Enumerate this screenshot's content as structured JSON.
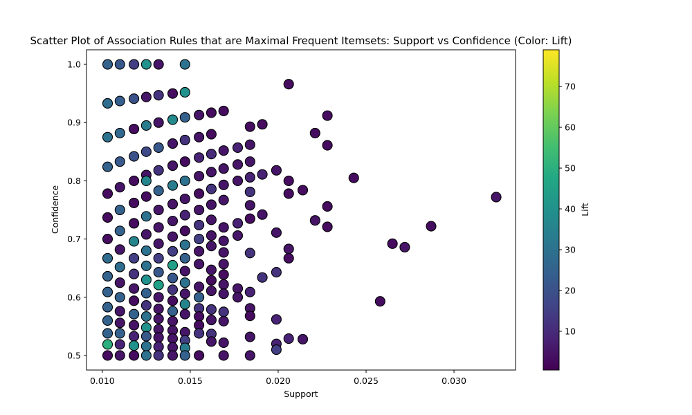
{
  "chart_data": {
    "type": "scatter",
    "title": "Scatter Plot of Association Rules that are Maximal Frequent Itemsets: Support vs Confidence (Color: Lift)",
    "xlabel": "Support",
    "ylabel": "Confidence",
    "xlim": [
      0.0091,
      0.0335
    ],
    "ylim": [
      0.475,
      1.025
    ],
    "x_ticks": [
      0.01,
      0.015,
      0.02,
      0.025,
      0.03
    ],
    "x_tick_labels": [
      "0.010",
      "0.015",
      "0.020",
      "0.025",
      "0.030"
    ],
    "y_ticks": [
      0.5,
      0.6,
      0.7,
      0.8,
      0.9,
      1.0
    ],
    "y_tick_labels": [
      "0.5",
      "0.6",
      "0.7",
      "0.8",
      "0.9",
      "1.0"
    ],
    "grid": false,
    "colorbar": {
      "label": "Lift",
      "colormap": "viridis",
      "range": [
        0.5,
        79
      ],
      "ticks": [
        10,
        20,
        30,
        40,
        50,
        60,
        70
      ],
      "tick_labels": [
        "10",
        "20",
        "30",
        "40",
        "50",
        "60",
        "70"
      ]
    },
    "marker": {
      "edge_color": "#000000",
      "shape": "circle"
    },
    "points": [
      {
        "x": 0.0103,
        "y": 1.0,
        "lift": 25
      },
      {
        "x": 0.011,
        "y": 1.0,
        "lift": 22
      },
      {
        "x": 0.0118,
        "y": 1.0,
        "lift": 15
      },
      {
        "x": 0.0125,
        "y": 1.0,
        "lift": 40
      },
      {
        "x": 0.0132,
        "y": 1.0,
        "lift": 5
      },
      {
        "x": 0.0147,
        "y": 1.0,
        "lift": 30
      },
      {
        "x": 0.0103,
        "y": 0.933,
        "lift": 28
      },
      {
        "x": 0.011,
        "y": 0.937,
        "lift": 24
      },
      {
        "x": 0.0118,
        "y": 0.941,
        "lift": 20
      },
      {
        "x": 0.0125,
        "y": 0.944,
        "lift": 5
      },
      {
        "x": 0.0132,
        "y": 0.947,
        "lift": 12
      },
      {
        "x": 0.014,
        "y": 0.95,
        "lift": 3
      },
      {
        "x": 0.0147,
        "y": 0.952,
        "lift": 40
      },
      {
        "x": 0.0103,
        "y": 0.875,
        "lift": 30
      },
      {
        "x": 0.011,
        "y": 0.882,
        "lift": 27
      },
      {
        "x": 0.0118,
        "y": 0.889,
        "lift": 3
      },
      {
        "x": 0.0125,
        "y": 0.895,
        "lift": 33
      },
      {
        "x": 0.0132,
        "y": 0.9,
        "lift": 5
      },
      {
        "x": 0.014,
        "y": 0.905,
        "lift": 38
      },
      {
        "x": 0.0147,
        "y": 0.909,
        "lift": 25
      },
      {
        "x": 0.0155,
        "y": 0.913,
        "lift": 5
      },
      {
        "x": 0.0162,
        "y": 0.917,
        "lift": 3
      },
      {
        "x": 0.0169,
        "y": 0.92,
        "lift": 3
      },
      {
        "x": 0.0103,
        "y": 0.824,
        "lift": 25
      },
      {
        "x": 0.011,
        "y": 0.833,
        "lift": 22
      },
      {
        "x": 0.0118,
        "y": 0.842,
        "lift": 20
      },
      {
        "x": 0.0125,
        "y": 0.85,
        "lift": 18
      },
      {
        "x": 0.0132,
        "y": 0.857,
        "lift": 22
      },
      {
        "x": 0.014,
        "y": 0.864,
        "lift": 5
      },
      {
        "x": 0.0147,
        "y": 0.87,
        "lift": 12
      },
      {
        "x": 0.0155,
        "y": 0.875,
        "lift": 5
      },
      {
        "x": 0.0162,
        "y": 0.88,
        "lift": 3
      },
      {
        "x": 0.0103,
        "y": 0.778,
        "lift": 3
      },
      {
        "x": 0.011,
        "y": 0.789,
        "lift": 5
      },
      {
        "x": 0.0118,
        "y": 0.8,
        "lift": 3
      },
      {
        "x": 0.0125,
        "y": 0.81,
        "lift": 5
      },
      {
        "x": 0.0132,
        "y": 0.818,
        "lift": 12
      },
      {
        "x": 0.014,
        "y": 0.826,
        "lift": 5
      },
      {
        "x": 0.0147,
        "y": 0.833,
        "lift": 3
      },
      {
        "x": 0.0155,
        "y": 0.84,
        "lift": 8
      },
      {
        "x": 0.0162,
        "y": 0.846,
        "lift": 10
      },
      {
        "x": 0.0169,
        "y": 0.852,
        "lift": 5
      },
      {
        "x": 0.0177,
        "y": 0.857,
        "lift": 8
      },
      {
        "x": 0.0184,
        "y": 0.862,
        "lift": 5
      },
      {
        "x": 0.0184,
        "y": 0.893,
        "lift": 3
      },
      {
        "x": 0.0191,
        "y": 0.897,
        "lift": 3
      },
      {
        "x": 0.0184,
        "y": 0.833,
        "lift": 5
      },
      {
        "x": 0.0177,
        "y": 0.828,
        "lift": 5
      },
      {
        "x": 0.0169,
        "y": 0.821,
        "lift": 5
      },
      {
        "x": 0.0162,
        "y": 0.815,
        "lift": 5
      },
      {
        "x": 0.0155,
        "y": 0.808,
        "lift": 5
      },
      {
        "x": 0.0147,
        "y": 0.8,
        "lift": 30
      },
      {
        "x": 0.014,
        "y": 0.792,
        "lift": 33
      },
      {
        "x": 0.0132,
        "y": 0.783,
        "lift": 25
      },
      {
        "x": 0.0125,
        "y": 0.773,
        "lift": 3
      },
      {
        "x": 0.0118,
        "y": 0.762,
        "lift": 3
      },
      {
        "x": 0.0125,
        "y": 0.8,
        "lift": 36
      },
      {
        "x": 0.0103,
        "y": 0.737,
        "lift": 3
      },
      {
        "x": 0.011,
        "y": 0.75,
        "lift": 25
      },
      {
        "x": 0.0118,
        "y": 0.727,
        "lift": 3
      },
      {
        "x": 0.0125,
        "y": 0.739,
        "lift": 30
      },
      {
        "x": 0.0132,
        "y": 0.75,
        "lift": 5
      },
      {
        "x": 0.014,
        "y": 0.76,
        "lift": 5
      },
      {
        "x": 0.0147,
        "y": 0.769,
        "lift": 5
      },
      {
        "x": 0.0155,
        "y": 0.778,
        "lift": 3
      },
      {
        "x": 0.0162,
        "y": 0.786,
        "lift": 12
      },
      {
        "x": 0.0169,
        "y": 0.793,
        "lift": 5
      },
      {
        "x": 0.0177,
        "y": 0.8,
        "lift": 5
      },
      {
        "x": 0.0184,
        "y": 0.806,
        "lift": 8
      },
      {
        "x": 0.0191,
        "y": 0.811,
        "lift": 8
      },
      {
        "x": 0.0199,
        "y": 0.818,
        "lift": 5
      },
      {
        "x": 0.0184,
        "y": 0.781,
        "lift": 12
      },
      {
        "x": 0.0206,
        "y": 0.8,
        "lift": 3
      },
      {
        "x": 0.0206,
        "y": 0.778,
        "lift": 3
      },
      {
        "x": 0.0214,
        "y": 0.784,
        "lift": 3
      },
      {
        "x": 0.0243,
        "y": 0.805,
        "lift": 3
      },
      {
        "x": 0.0221,
        "y": 0.882,
        "lift": 3
      },
      {
        "x": 0.0228,
        "y": 0.912,
        "lift": 3
      },
      {
        "x": 0.0228,
        "y": 0.861,
        "lift": 3
      },
      {
        "x": 0.0206,
        "y": 0.966,
        "lift": 3
      },
      {
        "x": 0.0103,
        "y": 0.7,
        "lift": 3
      },
      {
        "x": 0.011,
        "y": 0.714,
        "lift": 25
      },
      {
        "x": 0.0118,
        "y": 0.696,
        "lift": 36
      },
      {
        "x": 0.0125,
        "y": 0.708,
        "lift": 5
      },
      {
        "x": 0.0132,
        "y": 0.72,
        "lift": 5
      },
      {
        "x": 0.014,
        "y": 0.731,
        "lift": 5
      },
      {
        "x": 0.0147,
        "y": 0.741,
        "lift": 8
      },
      {
        "x": 0.0155,
        "y": 0.75,
        "lift": 5
      },
      {
        "x": 0.0162,
        "y": 0.759,
        "lift": 5
      },
      {
        "x": 0.0169,
        "y": 0.767,
        "lift": 5
      },
      {
        "x": 0.0184,
        "y": 0.758,
        "lift": 5
      },
      {
        "x": 0.0184,
        "y": 0.735,
        "lift": 3
      },
      {
        "x": 0.0177,
        "y": 0.727,
        "lift": 8
      },
      {
        "x": 0.0169,
        "y": 0.72,
        "lift": 5
      },
      {
        "x": 0.0162,
        "y": 0.733,
        "lift": 5
      },
      {
        "x": 0.0155,
        "y": 0.724,
        "lift": 12
      },
      {
        "x": 0.0147,
        "y": 0.714,
        "lift": 3
      },
      {
        "x": 0.014,
        "y": 0.704,
        "lift": 5
      },
      {
        "x": 0.0132,
        "y": 0.692,
        "lift": 5
      },
      {
        "x": 0.0125,
        "y": 0.68,
        "lift": 30
      },
      {
        "x": 0.0191,
        "y": 0.742,
        "lift": 5
      },
      {
        "x": 0.0177,
        "y": 0.706,
        "lift": 5
      },
      {
        "x": 0.0169,
        "y": 0.697,
        "lift": 5
      },
      {
        "x": 0.0162,
        "y": 0.706,
        "lift": 5
      },
      {
        "x": 0.0155,
        "y": 0.7,
        "lift": 15
      },
      {
        "x": 0.0147,
        "y": 0.69,
        "lift": 30
      },
      {
        "x": 0.014,
        "y": 0.679,
        "lift": 15
      },
      {
        "x": 0.0132,
        "y": 0.667,
        "lift": 15
      },
      {
        "x": 0.0103,
        "y": 0.667,
        "lift": 28
      },
      {
        "x": 0.011,
        "y": 0.682,
        "lift": 5
      },
      {
        "x": 0.0118,
        "y": 0.667,
        "lift": 15
      },
      {
        "x": 0.0125,
        "y": 0.654,
        "lift": 30
      },
      {
        "x": 0.0132,
        "y": 0.643,
        "lift": 22
      },
      {
        "x": 0.014,
        "y": 0.655,
        "lift": 45
      },
      {
        "x": 0.0147,
        "y": 0.667,
        "lift": 25
      },
      {
        "x": 0.0155,
        "y": 0.679,
        "lift": 5
      },
      {
        "x": 0.0162,
        "y": 0.688,
        "lift": 5
      },
      {
        "x": 0.0169,
        "y": 0.677,
        "lift": 5
      },
      {
        "x": 0.0184,
        "y": 0.676,
        "lift": 12
      },
      {
        "x": 0.0199,
        "y": 0.711,
        "lift": 5
      },
      {
        "x": 0.0206,
        "y": 0.683,
        "lift": 5
      },
      {
        "x": 0.0206,
        "y": 0.667,
        "lift": 3
      },
      {
        "x": 0.0103,
        "y": 0.636,
        "lift": 25
      },
      {
        "x": 0.011,
        "y": 0.652,
        "lift": 28
      },
      {
        "x": 0.0118,
        "y": 0.64,
        "lift": 12
      },
      {
        "x": 0.0125,
        "y": 0.63,
        "lift": 40
      },
      {
        "x": 0.0132,
        "y": 0.621,
        "lift": 45
      },
      {
        "x": 0.014,
        "y": 0.633,
        "lift": 22
      },
      {
        "x": 0.0147,
        "y": 0.645,
        "lift": 5
      },
      {
        "x": 0.0155,
        "y": 0.657,
        "lift": 5
      },
      {
        "x": 0.0162,
        "y": 0.647,
        "lift": 5
      },
      {
        "x": 0.0169,
        "y": 0.657,
        "lift": 5
      },
      {
        "x": 0.0162,
        "y": 0.629,
        "lift": 3
      },
      {
        "x": 0.0169,
        "y": 0.639,
        "lift": 3
      },
      {
        "x": 0.0191,
        "y": 0.634,
        "lift": 12
      },
      {
        "x": 0.0199,
        "y": 0.643,
        "lift": 12
      },
      {
        "x": 0.0221,
        "y": 0.732,
        "lift": 5
      },
      {
        "x": 0.0228,
        "y": 0.756,
        "lift": 3
      },
      {
        "x": 0.0228,
        "y": 0.721,
        "lift": 3
      },
      {
        "x": 0.0265,
        "y": 0.692,
        "lift": 3
      },
      {
        "x": 0.0272,
        "y": 0.686,
        "lift": 5
      },
      {
        "x": 0.0287,
        "y": 0.722,
        "lift": 3
      },
      {
        "x": 0.0324,
        "y": 0.772,
        "lift": 5
      },
      {
        "x": 0.0258,
        "y": 0.593,
        "lift": 3
      },
      {
        "x": 0.0103,
        "y": 0.609,
        "lift": 25
      },
      {
        "x": 0.011,
        "y": 0.625,
        "lift": 5
      },
      {
        "x": 0.0118,
        "y": 0.615,
        "lift": 5
      },
      {
        "x": 0.0125,
        "y": 0.607,
        "lift": 25
      },
      {
        "x": 0.0132,
        "y": 0.6,
        "lift": 5
      },
      {
        "x": 0.014,
        "y": 0.613,
        "lift": 12
      },
      {
        "x": 0.0147,
        "y": 0.625,
        "lift": 30
      },
      {
        "x": 0.0155,
        "y": 0.618,
        "lift": 5
      },
      {
        "x": 0.0162,
        "y": 0.611,
        "lift": 5
      },
      {
        "x": 0.0169,
        "y": 0.622,
        "lift": 5
      },
      {
        "x": 0.0169,
        "y": 0.606,
        "lift": 5
      },
      {
        "x": 0.0177,
        "y": 0.615,
        "lift": 5
      },
      {
        "x": 0.0177,
        "y": 0.6,
        "lift": 5
      },
      {
        "x": 0.0184,
        "y": 0.609,
        "lift": 8
      },
      {
        "x": 0.0103,
        "y": 0.583,
        "lift": 25
      },
      {
        "x": 0.011,
        "y": 0.6,
        "lift": 25
      },
      {
        "x": 0.0118,
        "y": 0.594,
        "lift": 3
      },
      {
        "x": 0.0125,
        "y": 0.586,
        "lift": 12
      },
      {
        "x": 0.0132,
        "y": 0.58,
        "lift": 5
      },
      {
        "x": 0.014,
        "y": 0.594,
        "lift": 3
      },
      {
        "x": 0.0147,
        "y": 0.606,
        "lift": 5
      },
      {
        "x": 0.0155,
        "y": 0.6,
        "lift": 25
      },
      {
        "x": 0.0162,
        "y": 0.579,
        "lift": 12
      },
      {
        "x": 0.0169,
        "y": 0.575,
        "lift": 12
      },
      {
        "x": 0.0184,
        "y": 0.581,
        "lift": 5
      },
      {
        "x": 0.0155,
        "y": 0.581,
        "lift": 12
      },
      {
        "x": 0.0147,
        "y": 0.588,
        "lift": 36
      },
      {
        "x": 0.014,
        "y": 0.576,
        "lift": 25
      },
      {
        "x": 0.0132,
        "y": 0.563,
        "lift": 5
      },
      {
        "x": 0.0125,
        "y": 0.567,
        "lift": 30
      },
      {
        "x": 0.0118,
        "y": 0.571,
        "lift": 25
      },
      {
        "x": 0.011,
        "y": 0.576,
        "lift": 5
      },
      {
        "x": 0.0103,
        "y": 0.56,
        "lift": 25
      },
      {
        "x": 0.011,
        "y": 0.556,
        "lift": 5
      },
      {
        "x": 0.0118,
        "y": 0.552,
        "lift": 5
      },
      {
        "x": 0.0125,
        "y": 0.548,
        "lift": 40
      },
      {
        "x": 0.0132,
        "y": 0.545,
        "lift": 5
      },
      {
        "x": 0.014,
        "y": 0.559,
        "lift": 5
      },
      {
        "x": 0.0147,
        "y": 0.571,
        "lift": 5
      },
      {
        "x": 0.0155,
        "y": 0.567,
        "lift": 3
      },
      {
        "x": 0.0155,
        "y": 0.552,
        "lift": 3
      },
      {
        "x": 0.0162,
        "y": 0.561,
        "lift": 5
      },
      {
        "x": 0.0169,
        "y": 0.559,
        "lift": 5
      },
      {
        "x": 0.0184,
        "y": 0.568,
        "lift": 3
      },
      {
        "x": 0.0199,
        "y": 0.562,
        "lift": 8
      },
      {
        "x": 0.014,
        "y": 0.543,
        "lift": 5
      },
      {
        "x": 0.0147,
        "y": 0.54,
        "lift": 5
      },
      {
        "x": 0.0155,
        "y": 0.538,
        "lift": 12
      },
      {
        "x": 0.0162,
        "y": 0.537,
        "lift": 12
      },
      {
        "x": 0.0162,
        "y": 0.524,
        "lift": 5
      },
      {
        "x": 0.0169,
        "y": 0.522,
        "lift": 5
      },
      {
        "x": 0.0184,
        "y": 0.532,
        "lift": 5
      },
      {
        "x": 0.0103,
        "y": 0.538,
        "lift": 25
      },
      {
        "x": 0.011,
        "y": 0.538,
        "lift": 25
      },
      {
        "x": 0.0118,
        "y": 0.533,
        "lift": 8
      },
      {
        "x": 0.0125,
        "y": 0.533,
        "lift": 22
      },
      {
        "x": 0.0132,
        "y": 0.531,
        "lift": 5
      },
      {
        "x": 0.014,
        "y": 0.529,
        "lift": 5
      },
      {
        "x": 0.0147,
        "y": 0.526,
        "lift": 15
      },
      {
        "x": 0.0103,
        "y": 0.519,
        "lift": 50
      },
      {
        "x": 0.011,
        "y": 0.519,
        "lift": 8
      },
      {
        "x": 0.0118,
        "y": 0.517,
        "lift": 40
      },
      {
        "x": 0.0125,
        "y": 0.516,
        "lift": 30
      },
      {
        "x": 0.0132,
        "y": 0.515,
        "lift": 8
      },
      {
        "x": 0.014,
        "y": 0.514,
        "lift": 5
      },
      {
        "x": 0.0147,
        "y": 0.513,
        "lift": 33
      },
      {
        "x": 0.0199,
        "y": 0.52,
        "lift": 8
      },
      {
        "x": 0.0199,
        "y": 0.51,
        "lift": 15
      },
      {
        "x": 0.0206,
        "y": 0.529,
        "lift": 8
      },
      {
        "x": 0.0214,
        "y": 0.528,
        "lift": 5
      },
      {
        "x": 0.0103,
        "y": 0.5,
        "lift": 3
      },
      {
        "x": 0.011,
        "y": 0.5,
        "lift": 5
      },
      {
        "x": 0.0118,
        "y": 0.5,
        "lift": 3
      },
      {
        "x": 0.0125,
        "y": 0.5,
        "lift": 30
      },
      {
        "x": 0.0132,
        "y": 0.5,
        "lift": 12
      },
      {
        "x": 0.014,
        "y": 0.5,
        "lift": 5
      },
      {
        "x": 0.0147,
        "y": 0.5,
        "lift": 25
      },
      {
        "x": 0.0155,
        "y": 0.5,
        "lift": 3
      },
      {
        "x": 0.0169,
        "y": 0.5,
        "lift": 5
      },
      {
        "x": 0.0184,
        "y": 0.5,
        "lift": 5
      }
    ]
  }
}
